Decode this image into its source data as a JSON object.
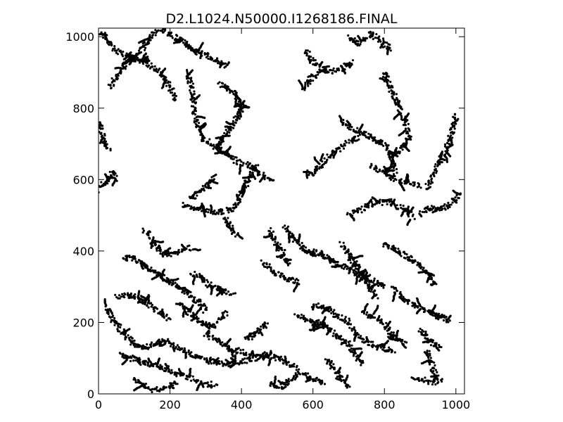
{
  "chart_data": {
    "type": "scatter",
    "title": "D2.L1024.N50000.I1268186.FINAL",
    "xlabel": "",
    "ylabel": "",
    "xlim": [
      0,
      1024
    ],
    "ylim": [
      0,
      1024
    ],
    "x_ticks": [
      0,
      200,
      400,
      600,
      800,
      1000
    ],
    "y_ticks": [
      0,
      200,
      400,
      600,
      800,
      1000
    ],
    "grid": false,
    "marker_color": "#000000",
    "cluster_strands": [
      {
        "name": "",
        "points": [
          [
            10,
            1010
          ],
          [
            45,
            965
          ],
          [
            90,
            940
          ],
          [
            130,
            930
          ],
          [
            170,
            900
          ],
          [
            200,
            860
          ],
          [
            215,
            820
          ]
        ]
      },
      {
        "name": "",
        "points": [
          [
            30,
            860
          ],
          [
            60,
            900
          ],
          [
            80,
            930
          ],
          [
            110,
            950
          ],
          [
            140,
            990
          ],
          [
            170,
            1020
          ]
        ]
      },
      {
        "name": "",
        "points": [
          [
            180,
            1020
          ],
          [
            210,
            1000
          ],
          [
            250,
            980
          ],
          [
            270,
            960
          ],
          [
            300,
            950
          ],
          [
            330,
            930
          ],
          [
            360,
            920
          ]
        ]
      },
      {
        "name": "",
        "points": [
          [
            250,
            900
          ],
          [
            260,
            860
          ],
          [
            265,
            820
          ],
          [
            270,
            780
          ],
          [
            280,
            740
          ],
          [
            300,
            710
          ],
          [
            330,
            690
          ]
        ]
      },
      {
        "name": "",
        "points": [
          [
            330,
            690
          ],
          [
            360,
            670
          ],
          [
            390,
            650
          ],
          [
            420,
            640
          ],
          [
            450,
            620
          ],
          [
            480,
            600
          ]
        ]
      },
      {
        "name": "",
        "points": [
          [
            340,
            870
          ],
          [
            380,
            840
          ],
          [
            400,
            800
          ],
          [
            380,
            760
          ],
          [
            350,
            720
          ],
          [
            330,
            690
          ]
        ]
      },
      {
        "name": "",
        "points": [
          [
            0,
            760
          ],
          [
            10,
            730
          ],
          [
            20,
            700
          ],
          [
            30,
            680
          ]
        ]
      },
      {
        "name": "",
        "points": [
          [
            0,
            570
          ],
          [
            15,
            590
          ],
          [
            30,
            600
          ],
          [
            40,
            620
          ],
          [
            50,
            600
          ]
        ]
      },
      {
        "name": "",
        "points": [
          [
            580,
            960
          ],
          [
            610,
            920
          ],
          [
            640,
            900
          ],
          [
            680,
            910
          ],
          [
            710,
            930
          ]
        ]
      },
      {
        "name": "",
        "points": [
          [
            570,
            850
          ],
          [
            590,
            880
          ],
          [
            620,
            900
          ]
        ]
      },
      {
        "name": "",
        "points": [
          [
            700,
            1000
          ],
          [
            730,
            980
          ],
          [
            760,
            1010
          ],
          [
            790,
            990
          ],
          [
            820,
            960
          ]
        ]
      },
      {
        "name": "",
        "points": [
          [
            800,
            900
          ],
          [
            820,
            850
          ],
          [
            840,
            800
          ],
          [
            860,
            760
          ],
          [
            870,
            720
          ],
          [
            850,
            690
          ],
          [
            820,
            660
          ]
        ]
      },
      {
        "name": "",
        "points": [
          [
            680,
            760
          ],
          [
            720,
            740
          ],
          [
            760,
            720
          ],
          [
            800,
            700
          ],
          [
            820,
            660
          ],
          [
            830,
            620
          ]
        ]
      },
      {
        "name": "",
        "points": [
          [
            590,
            610
          ],
          [
            620,
            640
          ],
          [
            650,
            670
          ],
          [
            690,
            700
          ],
          [
            730,
            720
          ]
        ]
      },
      {
        "name": "",
        "points": [
          [
            760,
            640
          ],
          [
            800,
            620
          ],
          [
            830,
            600
          ],
          [
            870,
            590
          ],
          [
            900,
            580
          ]
        ]
      },
      {
        "name": "",
        "points": [
          [
            1000,
            780
          ],
          [
            990,
            740
          ],
          [
            980,
            700
          ],
          [
            960,
            660
          ],
          [
            940,
            620
          ],
          [
            920,
            580
          ]
        ]
      },
      {
        "name": "",
        "points": [
          [
            1010,
            560
          ],
          [
            990,
            530
          ],
          [
            960,
            520
          ],
          [
            930,
            520
          ],
          [
            900,
            510
          ]
        ]
      },
      {
        "name": "",
        "points": [
          [
            440,
            640
          ],
          [
            420,
            600
          ],
          [
            400,
            560
          ],
          [
            380,
            520
          ],
          [
            350,
            510
          ],
          [
            320,
            510
          ],
          [
            290,
            520
          ],
          [
            260,
            520
          ],
          [
            240,
            530
          ]
        ]
      },
      {
        "name": "",
        "points": [
          [
            260,
            550
          ],
          [
            290,
            570
          ],
          [
            310,
            590
          ],
          [
            330,
            610
          ]
        ]
      },
      {
        "name": "",
        "points": [
          [
            350,
            500
          ],
          [
            370,
            470
          ],
          [
            380,
            450
          ],
          [
            390,
            440
          ]
        ]
      },
      {
        "name": "",
        "points": [
          [
            520,
            470
          ],
          [
            540,
            440
          ],
          [
            560,
            420
          ],
          [
            580,
            400
          ],
          [
            610,
            390
          ]
        ]
      },
      {
        "name": "",
        "points": [
          [
            460,
            370
          ],
          [
            490,
            340
          ],
          [
            510,
            330
          ],
          [
            540,
            320
          ],
          [
            560,
            310
          ]
        ]
      },
      {
        "name": "",
        "points": [
          [
            480,
            460
          ],
          [
            500,
            420
          ],
          [
            520,
            390
          ],
          [
            530,
            360
          ]
        ]
      },
      {
        "name": "",
        "points": [
          [
            700,
            500
          ],
          [
            740,
            520
          ],
          [
            780,
            540
          ],
          [
            820,
            530
          ],
          [
            860,
            520
          ],
          [
            880,
            490
          ]
        ]
      },
      {
        "name": "",
        "points": [
          [
            800,
            420
          ],
          [
            840,
            400
          ],
          [
            870,
            380
          ],
          [
            900,
            360
          ],
          [
            930,
            330
          ],
          [
            940,
            300
          ]
        ]
      },
      {
        "name": "",
        "points": [
          [
            600,
            400
          ],
          [
            640,
            380
          ],
          [
            680,
            360
          ],
          [
            720,
            340
          ],
          [
            760,
            320
          ],
          [
            800,
            300
          ]
        ]
      },
      {
        "name": "",
        "points": [
          [
            680,
            420
          ],
          [
            700,
            390
          ],
          [
            720,
            360
          ],
          [
            740,
            330
          ],
          [
            760,
            300
          ],
          [
            780,
            270
          ]
        ]
      },
      {
        "name": "",
        "points": [
          [
            820,
            300
          ],
          [
            850,
            270
          ],
          [
            880,
            250
          ],
          [
            920,
            230
          ],
          [
            960,
            220
          ],
          [
            980,
            200
          ]
        ]
      },
      {
        "name": "",
        "points": [
          [
            900,
            180
          ],
          [
            920,
            160
          ],
          [
            940,
            140
          ],
          [
            960,
            130
          ]
        ]
      },
      {
        "name": "",
        "points": [
          [
            920,
            120
          ],
          [
            930,
            90
          ],
          [
            940,
            60
          ],
          [
            950,
            40
          ]
        ]
      },
      {
        "name": "",
        "points": [
          [
            880,
            40
          ],
          [
            910,
            40
          ],
          [
            930,
            30
          ],
          [
            960,
            40
          ]
        ]
      },
      {
        "name": "",
        "points": [
          [
            600,
            250
          ],
          [
            640,
            240
          ],
          [
            670,
            220
          ],
          [
            700,
            200
          ],
          [
            720,
            170
          ],
          [
            740,
            150
          ],
          [
            780,
            130
          ],
          [
            830,
            120
          ]
        ]
      },
      {
        "name": "",
        "points": [
          [
            620,
            200
          ],
          [
            660,
            170
          ],
          [
            700,
            140
          ],
          [
            720,
            110
          ],
          [
            740,
            80
          ]
        ]
      },
      {
        "name": "",
        "points": [
          [
            640,
            100
          ],
          [
            660,
            70
          ],
          [
            680,
            40
          ],
          [
            700,
            20
          ]
        ]
      },
      {
        "name": "",
        "points": [
          [
            740,
            230
          ],
          [
            780,
            210
          ],
          [
            800,
            190
          ],
          [
            830,
            160
          ],
          [
            860,
            140
          ]
        ]
      },
      {
        "name": "",
        "points": [
          [
            550,
            220
          ],
          [
            580,
            210
          ],
          [
            600,
            200
          ],
          [
            610,
            180
          ]
        ]
      },
      {
        "name": "",
        "points": [
          [
            130,
            460
          ],
          [
            150,
            430
          ],
          [
            170,
            400
          ],
          [
            200,
            390
          ],
          [
            230,
            400
          ],
          [
            260,
            410
          ]
        ]
      },
      {
        "name": "",
        "points": [
          [
            70,
            380
          ],
          [
            100,
            380
          ],
          [
            130,
            360
          ],
          [
            160,
            340
          ],
          [
            190,
            320
          ],
          [
            220,
            300
          ],
          [
            250,
            280
          ],
          [
            280,
            260
          ],
          [
            300,
            230
          ]
        ]
      },
      {
        "name": "",
        "points": [
          [
            50,
            270
          ],
          [
            80,
            280
          ],
          [
            110,
            270
          ],
          [
            140,
            250
          ],
          [
            170,
            230
          ],
          [
            200,
            210
          ]
        ]
      },
      {
        "name": "",
        "points": [
          [
            230,
            250
          ],
          [
            260,
            220
          ],
          [
            290,
            200
          ],
          [
            320,
            190
          ],
          [
            340,
            210
          ],
          [
            360,
            230
          ]
        ]
      },
      {
        "name": "",
        "points": [
          [
            260,
            340
          ],
          [
            290,
            320
          ],
          [
            320,
            300
          ],
          [
            350,
            290
          ],
          [
            380,
            280
          ]
        ]
      },
      {
        "name": "",
        "points": [
          [
            20,
            240
          ],
          [
            40,
            210
          ],
          [
            60,
            180
          ],
          [
            80,
            160
          ],
          [
            100,
            140
          ],
          [
            130,
            130
          ],
          [
            160,
            140
          ],
          [
            200,
            150
          ]
        ]
      },
      {
        "name": "",
        "points": [
          [
            60,
            110
          ],
          [
            90,
            100
          ],
          [
            120,
            90
          ],
          [
            150,
            80
          ],
          [
            180,
            70
          ],
          [
            210,
            60
          ],
          [
            240,
            50
          ],
          [
            270,
            40
          ],
          [
            300,
            30
          ],
          [
            330,
            20
          ]
        ]
      },
      {
        "name": "",
        "points": [
          [
            100,
            40
          ],
          [
            130,
            20
          ],
          [
            160,
            10
          ],
          [
            190,
            20
          ],
          [
            220,
            30
          ]
        ]
      },
      {
        "name": "",
        "points": [
          [
            200,
            140
          ],
          [
            240,
            120
          ],
          [
            280,
            100
          ],
          [
            320,
            90
          ],
          [
            360,
            80
          ],
          [
            400,
            90
          ],
          [
            440,
            100
          ],
          [
            480,
            110
          ],
          [
            520,
            90
          ],
          [
            560,
            70
          ]
        ]
      },
      {
        "name": "",
        "points": [
          [
            300,
            170
          ],
          [
            330,
            150
          ],
          [
            360,
            130
          ],
          [
            390,
            120
          ],
          [
            420,
            110
          ]
        ]
      },
      {
        "name": "",
        "points": [
          [
            480,
            30
          ],
          [
            510,
            20
          ],
          [
            540,
            40
          ],
          [
            570,
            60
          ],
          [
            600,
            40
          ],
          [
            630,
            30
          ]
        ]
      },
      {
        "name": "",
        "points": [
          [
            470,
            200
          ],
          [
            450,
            180
          ],
          [
            430,
            160
          ],
          [
            410,
            150
          ]
        ]
      }
    ]
  }
}
